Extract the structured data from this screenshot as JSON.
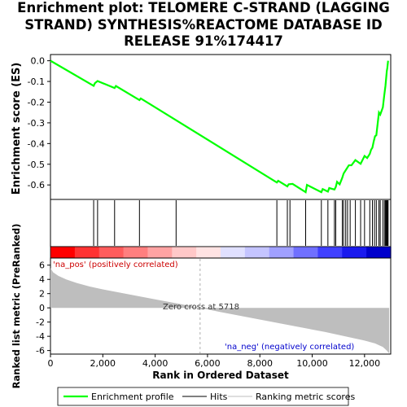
{
  "chart_data": [
    {
      "type": "line",
      "title_lines": [
        "Enrichment plot: TELOMERE C-STRAND (LAGGING",
        "STRAND) SYNTHESIS%REACTOME DATABASE ID",
        "RELEASE 91%174417"
      ],
      "ylabel": "Enrichment score (ES)",
      "xlim": [
        0,
        13000
      ],
      "ylim": [
        -0.67,
        0.03
      ],
      "y_ticks": [
        0.0,
        -0.1,
        -0.2,
        -0.3,
        -0.4,
        -0.5,
        -0.6
      ],
      "y_tick_labels": [
        "0.0",
        "-0.1",
        "-0.2",
        "-0.3",
        "-0.4",
        "-0.5",
        "-0.6"
      ],
      "grid": false,
      "series": [
        {
          "name": "Enrichment profile",
          "color": "#00ff00",
          "x": [
            0,
            1650,
            1700,
            1800,
            2450,
            2500,
            3400,
            3450,
            8650,
            8700,
            9050,
            9100,
            9250,
            9750,
            9800,
            10350,
            10400,
            10600,
            10650,
            10850,
            10900,
            10950,
            11050,
            11150,
            11200,
            11300,
            11400,
            11500,
            11650,
            11850,
            12000,
            12100,
            12200,
            12250,
            12300,
            12350,
            12400,
            12450,
            12550,
            12600,
            12700,
            12750,
            12800,
            12850,
            12870,
            12900
          ],
          "y": [
            0.0,
            -0.121,
            -0.108,
            -0.098,
            -0.132,
            -0.122,
            -0.19,
            -0.182,
            -0.588,
            -0.58,
            -0.607,
            -0.597,
            -0.595,
            -0.635,
            -0.6,
            -0.635,
            -0.62,
            -0.632,
            -0.615,
            -0.622,
            -0.61,
            -0.585,
            -0.597,
            -0.565,
            -0.545,
            -0.525,
            -0.505,
            -0.505,
            -0.48,
            -0.498,
            -0.46,
            -0.47,
            -0.45,
            -0.43,
            -0.42,
            -0.39,
            -0.365,
            -0.36,
            -0.25,
            -0.26,
            -0.225,
            -0.17,
            -0.12,
            -0.05,
            -0.035,
            0.0
          ]
        }
      ]
    },
    {
      "type": "hits",
      "legend_name": "Hits",
      "hits": [
        1650,
        1800,
        2450,
        3400,
        4800,
        8650,
        9050,
        9150,
        9750,
        10350,
        10600,
        10850,
        10900,
        11150,
        11200,
        11280,
        11350,
        11450,
        11650,
        11850,
        12000,
        12200,
        12300,
        12380,
        12450,
        12550,
        12600,
        12700,
        12760,
        12800,
        12830,
        12860,
        12880,
        12900
      ]
    },
    {
      "type": "heatmap",
      "name": "ranking-color-bar",
      "colors": [
        "#ff0000",
        "#ff3333",
        "#ff5c5c",
        "#ff7f7f",
        "#ffa3a3",
        "#ffc8c8",
        "#ffe3e3",
        "#e0e0ff",
        "#c4c4ff",
        "#a0a0ff",
        "#7070ff",
        "#4040ff",
        "#1a1aee",
        "#0000cc"
      ]
    },
    {
      "type": "area",
      "xlabel": "Rank in Ordered Dataset",
      "ylabel": "Ranked list metric (PreRanked)",
      "xlim": [
        0,
        13000
      ],
      "ylim": [
        -6.5,
        7
      ],
      "x_ticks": [
        0,
        2000,
        4000,
        6000,
        8000,
        10000,
        12000
      ],
      "x_tick_labels": [
        "0",
        "2,000",
        "4,000",
        "6,000",
        "8,000",
        "10,000",
        "12,000"
      ],
      "y_ticks": [
        6,
        4,
        2,
        0,
        -2,
        -4,
        -6
      ],
      "y_tick_labels": [
        "6",
        "4",
        "2",
        "0",
        "-2",
        "-4",
        "-6"
      ],
      "series": [
        {
          "name": "Ranking metric scores",
          "color": "#bebebe",
          "x": [
            0,
            100,
            300,
            600,
            1000,
            1500,
            2000,
            3000,
            4000,
            5000,
            5718,
            6500,
            7500,
            8500,
            9500,
            10500,
            11500,
            12000,
            12400,
            12700,
            12850,
            12940
          ],
          "y": [
            5.6,
            5.0,
            4.5,
            4.0,
            3.5,
            3.0,
            2.6,
            1.9,
            1.2,
            0.5,
            0.0,
            -0.6,
            -1.3,
            -2.0,
            -2.7,
            -3.4,
            -4.2,
            -4.6,
            -5.0,
            -5.5,
            -6.0,
            -6.4
          ]
        }
      ],
      "annotations": {
        "pos_label": "'na_pos' (positively correlated)",
        "neg_label": "'na_neg' (negatively correlated)",
        "zero_cross_label": "Zero cross at 5718",
        "zero_cross_x": 5718
      }
    }
  ],
  "legend": {
    "items": [
      {
        "label": "Enrichment profile",
        "color": "#00ff00"
      },
      {
        "label": "Hits",
        "color": "#000000"
      },
      {
        "label": "Ranking metric scores",
        "color": "#bebebe"
      }
    ]
  }
}
